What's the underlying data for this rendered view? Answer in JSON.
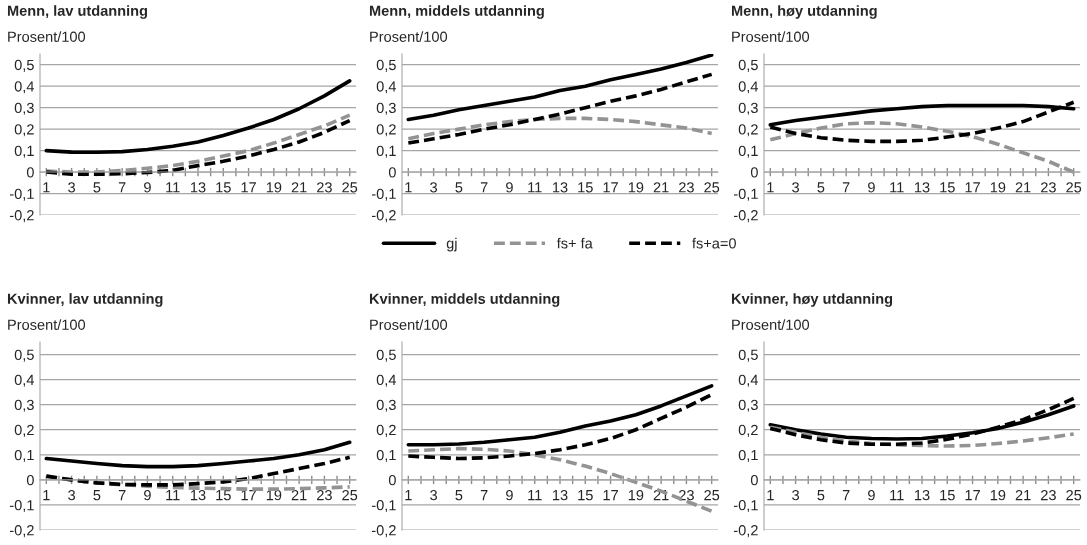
{
  "chart_data": [
    {
      "type": "line",
      "title": "Menn, lav utdanning",
      "ylabel": "Prosent/100",
      "x": [
        1,
        3,
        5,
        7,
        9,
        11,
        13,
        15,
        17,
        19,
        21,
        23,
        25
      ],
      "xlim": [
        0.5,
        25.5
      ],
      "ylim": [
        -0.2,
        0.55
      ],
      "xticks": [
        1,
        {
          "value": 2,
          "label": null
        },
        3,
        {
          "value": 4,
          "label": null
        },
        5,
        {
          "value": 6,
          "label": null
        },
        7,
        {
          "value": 8,
          "label": null
        },
        9,
        {
          "value": 10,
          "label": null
        },
        11,
        {
          "value": 12,
          "label": null
        },
        13,
        {
          "value": 14,
          "label": null
        },
        15,
        {
          "value": 16,
          "label": null
        },
        17,
        {
          "value": 18,
          "label": null
        },
        19,
        {
          "value": 20,
          "label": null
        },
        21,
        {
          "value": 22,
          "label": null
        },
        23,
        {
          "value": 24,
          "label": null
        },
        25
      ],
      "yticks": [
        {
          "value": -0.2,
          "label": "-0,2"
        },
        {
          "value": -0.1,
          "label": "-0,1"
        },
        0,
        {
          "value": 0.1,
          "label": "0,1"
        },
        {
          "value": 0.2,
          "label": "0,2"
        },
        {
          "value": 0.3,
          "label": "0,3"
        },
        {
          "value": 0.4,
          "label": "0,4"
        },
        {
          "value": 0.5,
          "label": "0,5"
        }
      ],
      "grid": "y",
      "series": [
        {
          "color": "#000000",
          "line_style": "solid",
          "values": [
            0.1,
            0.093,
            0.092,
            0.095,
            0.105,
            0.12,
            0.14,
            0.17,
            0.205,
            0.245,
            0.295,
            0.355,
            0.425
          ]
        },
        {
          "color": "#939393",
          "line_style": "dashed",
          "values": [
            0.005,
            0.0,
            0.0,
            0.007,
            0.018,
            0.03,
            0.05,
            0.075,
            0.1,
            0.135,
            0.175,
            0.215,
            0.265
          ]
        },
        {
          "color": "#000000",
          "line_style": "dashed",
          "values": [
            0.0,
            -0.01,
            -0.01,
            -0.008,
            -0.002,
            0.008,
            0.03,
            0.05,
            0.075,
            0.105,
            0.14,
            0.185,
            0.24
          ]
        }
      ]
    },
    {
      "type": "line",
      "title": "Menn, middels utdanning",
      "ylabel": "Prosent/100",
      "x": [
        1,
        3,
        5,
        7,
        9,
        11,
        13,
        15,
        17,
        19,
        21,
        23,
        25
      ],
      "xlim": [
        0.5,
        25.5
      ],
      "ylim": [
        -0.2,
        0.55
      ],
      "xticks": [
        1,
        {
          "value": 2,
          "label": null
        },
        3,
        {
          "value": 4,
          "label": null
        },
        5,
        {
          "value": 6,
          "label": null
        },
        7,
        {
          "value": 8,
          "label": null
        },
        9,
        {
          "value": 10,
          "label": null
        },
        11,
        {
          "value": 12,
          "label": null
        },
        13,
        {
          "value": 14,
          "label": null
        },
        15,
        {
          "value": 16,
          "label": null
        },
        17,
        {
          "value": 18,
          "label": null
        },
        19,
        {
          "value": 20,
          "label": null
        },
        21,
        {
          "value": 22,
          "label": null
        },
        23,
        {
          "value": 24,
          "label": null
        },
        25
      ],
      "yticks": [
        {
          "value": -0.2,
          "label": "-0,2"
        },
        {
          "value": -0.1,
          "label": "-0,1"
        },
        0,
        {
          "value": 0.1,
          "label": "0,1"
        },
        {
          "value": 0.2,
          "label": "0,2"
        },
        {
          "value": 0.3,
          "label": "0,3"
        },
        {
          "value": 0.4,
          "label": "0,4"
        },
        {
          "value": 0.5,
          "label": "0,5"
        }
      ],
      "grid": "y",
      "legend": "bottom",
      "series": [
        {
          "name": "gj",
          "color": "#000000",
          "line_style": "solid",
          "values": [
            0.245,
            0.265,
            0.29,
            0.31,
            0.33,
            0.35,
            0.38,
            0.4,
            0.43,
            0.455,
            0.48,
            0.51,
            0.545
          ]
        },
        {
          "name": "fs+ fa",
          "color": "#939393",
          "line_style": "dashed",
          "values": [
            0.155,
            0.18,
            0.2,
            0.22,
            0.235,
            0.245,
            0.25,
            0.25,
            0.245,
            0.235,
            0.22,
            0.205,
            0.18
          ]
        },
        {
          "name": "fs+a=0",
          "color": "#000000",
          "line_style": "dashed",
          "values": [
            0.135,
            0.155,
            0.175,
            0.2,
            0.22,
            0.245,
            0.27,
            0.3,
            0.33,
            0.355,
            0.385,
            0.42,
            0.455
          ]
        }
      ]
    },
    {
      "type": "line",
      "title": "Menn, høy utdanning",
      "ylabel": "Prosent/100",
      "x": [
        1,
        3,
        5,
        7,
        9,
        11,
        13,
        15,
        17,
        19,
        21,
        23,
        25
      ],
      "xlim": [
        0.5,
        25.5
      ],
      "ylim": [
        -0.2,
        0.55
      ],
      "xticks": [
        1,
        {
          "value": 2,
          "label": null
        },
        3,
        {
          "value": 4,
          "label": null
        },
        5,
        {
          "value": 6,
          "label": null
        },
        7,
        {
          "value": 8,
          "label": null
        },
        9,
        {
          "value": 10,
          "label": null
        },
        11,
        {
          "value": 12,
          "label": null
        },
        13,
        {
          "value": 14,
          "label": null
        },
        15,
        {
          "value": 16,
          "label": null
        },
        17,
        {
          "value": 18,
          "label": null
        },
        19,
        {
          "value": 20,
          "label": null
        },
        21,
        {
          "value": 22,
          "label": null
        },
        23,
        {
          "value": 24,
          "label": null
        },
        25
      ],
      "yticks": [
        {
          "value": -0.2,
          "label": "-0,2"
        },
        {
          "value": -0.1,
          "label": "-0,1"
        },
        0,
        {
          "value": 0.1,
          "label": "0,1"
        },
        {
          "value": 0.2,
          "label": "0,2"
        },
        {
          "value": 0.3,
          "label": "0,3"
        },
        {
          "value": 0.4,
          "label": "0,4"
        },
        {
          "value": 0.5,
          "label": "0,5"
        }
      ],
      "grid": "y",
      "series": [
        {
          "color": "#000000",
          "line_style": "solid",
          "values": [
            0.22,
            0.24,
            0.255,
            0.27,
            0.285,
            0.295,
            0.305,
            0.31,
            0.31,
            0.31,
            0.31,
            0.305,
            0.295
          ]
        },
        {
          "color": "#939393",
          "line_style": "dashed",
          "values": [
            0.15,
            0.18,
            0.205,
            0.225,
            0.23,
            0.225,
            0.21,
            0.19,
            0.165,
            0.13,
            0.09,
            0.05,
            0.0
          ]
        },
        {
          "color": "#000000",
          "line_style": "dashed",
          "values": [
            0.21,
            0.18,
            0.16,
            0.148,
            0.143,
            0.143,
            0.148,
            0.163,
            0.18,
            0.205,
            0.235,
            0.28,
            0.325
          ]
        }
      ]
    },
    {
      "type": "line",
      "title": "Kvinner, lav utdanning",
      "ylabel": "Prosent/100",
      "x": [
        1,
        3,
        5,
        7,
        9,
        11,
        13,
        15,
        17,
        19,
        21,
        23,
        25
      ],
      "xlim": [
        0.5,
        25.5
      ],
      "ylim": [
        -0.2,
        0.55
      ],
      "xticks": [
        1,
        {
          "value": 2,
          "label": null
        },
        3,
        {
          "value": 4,
          "label": null
        },
        5,
        {
          "value": 6,
          "label": null
        },
        7,
        {
          "value": 8,
          "label": null
        },
        9,
        {
          "value": 10,
          "label": null
        },
        11,
        {
          "value": 12,
          "label": null
        },
        13,
        {
          "value": 14,
          "label": null
        },
        15,
        {
          "value": 16,
          "label": null
        },
        17,
        {
          "value": 18,
          "label": null
        },
        19,
        {
          "value": 20,
          "label": null
        },
        21,
        {
          "value": 22,
          "label": null
        },
        23,
        {
          "value": 24,
          "label": null
        },
        25
      ],
      "yticks": [
        {
          "value": -0.2,
          "label": "-0,2"
        },
        {
          "value": -0.1,
          "label": "-0,1"
        },
        0,
        {
          "value": 0.1,
          "label": "0,1"
        },
        {
          "value": 0.2,
          "label": "0,2"
        },
        {
          "value": 0.3,
          "label": "0,3"
        },
        {
          "value": 0.4,
          "label": "0,4"
        },
        {
          "value": 0.5,
          "label": "0,5"
        }
      ],
      "grid": "y",
      "series": [
        {
          "color": "#000000",
          "line_style": "solid",
          "values": [
            0.085,
            0.075,
            0.065,
            0.057,
            0.053,
            0.053,
            0.057,
            0.065,
            0.075,
            0.085,
            0.1,
            0.12,
            0.15
          ]
        },
        {
          "color": "#939393",
          "line_style": "dashed",
          "values": [
            0.015,
            0.0,
            -0.012,
            -0.02,
            -0.025,
            -0.03,
            -0.033,
            -0.035,
            -0.037,
            -0.037,
            -0.035,
            -0.032,
            -0.028
          ]
        },
        {
          "color": "#000000",
          "line_style": "dashed",
          "values": [
            0.015,
            0.0,
            -0.012,
            -0.018,
            -0.02,
            -0.02,
            -0.015,
            -0.008,
            0.005,
            0.025,
            0.045,
            0.065,
            0.09
          ]
        }
      ]
    },
    {
      "type": "line",
      "title": "Kvinner, middels utdanning",
      "ylabel": "Prosent/100",
      "x": [
        1,
        3,
        5,
        7,
        9,
        11,
        13,
        15,
        17,
        19,
        21,
        23,
        25
      ],
      "xlim": [
        0.5,
        25.5
      ],
      "ylim": [
        -0.2,
        0.55
      ],
      "xticks": [
        1,
        {
          "value": 2,
          "label": null
        },
        3,
        {
          "value": 4,
          "label": null
        },
        5,
        {
          "value": 6,
          "label": null
        },
        7,
        {
          "value": 8,
          "label": null
        },
        9,
        {
          "value": 10,
          "label": null
        },
        11,
        {
          "value": 12,
          "label": null
        },
        13,
        {
          "value": 14,
          "label": null
        },
        15,
        {
          "value": 16,
          "label": null
        },
        17,
        {
          "value": 18,
          "label": null
        },
        19,
        {
          "value": 20,
          "label": null
        },
        21,
        {
          "value": 22,
          "label": null
        },
        23,
        {
          "value": 24,
          "label": null
        },
        25
      ],
      "yticks": [
        {
          "value": -0.2,
          "label": "-0,2"
        },
        {
          "value": -0.1,
          "label": "-0,1"
        },
        0,
        {
          "value": 0.1,
          "label": "0,1"
        },
        {
          "value": 0.2,
          "label": "0,2"
        },
        {
          "value": 0.3,
          "label": "0,3"
        },
        {
          "value": 0.4,
          "label": "0,4"
        },
        {
          "value": 0.5,
          "label": "0,5"
        }
      ],
      "grid": "y",
      "series": [
        {
          "color": "#000000",
          "line_style": "solid",
          "values": [
            0.14,
            0.14,
            0.143,
            0.15,
            0.16,
            0.17,
            0.19,
            0.215,
            0.235,
            0.26,
            0.295,
            0.335,
            0.375
          ]
        },
        {
          "color": "#939393",
          "line_style": "dashed",
          "values": [
            0.115,
            0.12,
            0.125,
            0.122,
            0.115,
            0.1,
            0.08,
            0.055,
            0.025,
            -0.01,
            -0.045,
            -0.085,
            -0.125
          ]
        },
        {
          "color": "#000000",
          "line_style": "dashed",
          "values": [
            0.095,
            0.09,
            0.085,
            0.088,
            0.095,
            0.105,
            0.12,
            0.14,
            0.165,
            0.2,
            0.245,
            0.29,
            0.34
          ]
        }
      ]
    },
    {
      "type": "line",
      "title": "Kvinner, høy utdanning",
      "ylabel": "Prosent/100",
      "x": [
        1,
        3,
        5,
        7,
        9,
        11,
        13,
        15,
        17,
        19,
        21,
        23,
        25
      ],
      "xlim": [
        0.5,
        25.5
      ],
      "ylim": [
        -0.2,
        0.55
      ],
      "xticks": [
        1,
        {
          "value": 2,
          "label": null
        },
        3,
        {
          "value": 4,
          "label": null
        },
        5,
        {
          "value": 6,
          "label": null
        },
        7,
        {
          "value": 8,
          "label": null
        },
        9,
        {
          "value": 10,
          "label": null
        },
        11,
        {
          "value": 12,
          "label": null
        },
        13,
        {
          "value": 14,
          "label": null
        },
        15,
        {
          "value": 16,
          "label": null
        },
        17,
        {
          "value": 18,
          "label": null
        },
        19,
        {
          "value": 20,
          "label": null
        },
        21,
        {
          "value": 22,
          "label": null
        },
        23,
        {
          "value": 24,
          "label": null
        },
        25
      ],
      "yticks": [
        {
          "value": -0.2,
          "label": "-0,2"
        },
        {
          "value": -0.1,
          "label": "-0,1"
        },
        0,
        {
          "value": 0.1,
          "label": "0,1"
        },
        {
          "value": 0.2,
          "label": "0,2"
        },
        {
          "value": 0.3,
          "label": "0,3"
        },
        {
          "value": 0.4,
          "label": "0,4"
        },
        {
          "value": 0.5,
          "label": "0,5"
        }
      ],
      "grid": "y",
      "series": [
        {
          "color": "#000000",
          "line_style": "solid",
          "values": [
            0.22,
            0.2,
            0.183,
            0.17,
            0.165,
            0.163,
            0.165,
            0.175,
            0.188,
            0.205,
            0.23,
            0.26,
            0.295
          ]
        },
        {
          "color": "#939393",
          "line_style": "dashed",
          "values": [
            0.21,
            0.19,
            0.17,
            0.155,
            0.145,
            0.14,
            0.137,
            0.135,
            0.137,
            0.145,
            0.155,
            0.168,
            0.183
          ]
        },
        {
          "color": "#000000",
          "line_style": "dashed",
          "values": [
            0.205,
            0.18,
            0.16,
            0.147,
            0.142,
            0.142,
            0.147,
            0.162,
            0.183,
            0.21,
            0.24,
            0.28,
            0.325
          ]
        }
      ]
    }
  ]
}
